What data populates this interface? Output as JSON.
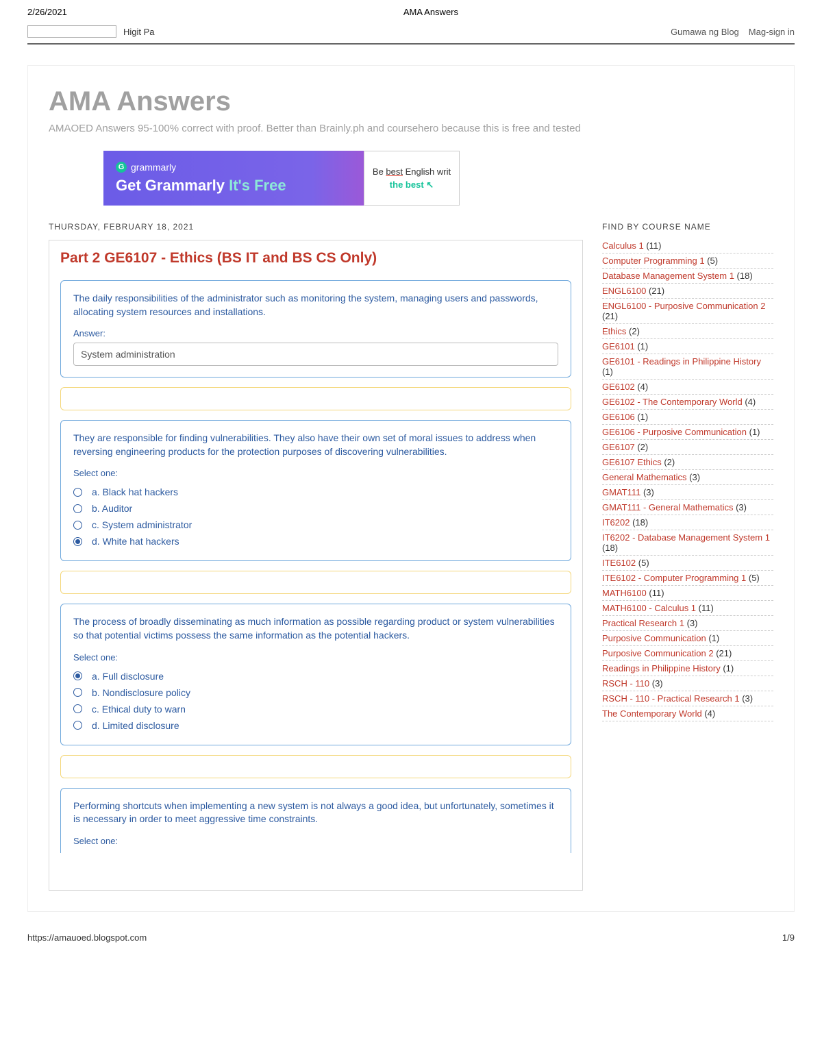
{
  "print": {
    "date": "2/26/2021",
    "title": "AMA Answers",
    "url": "https://amauoed.blogspot.com",
    "page": "1/9"
  },
  "topbar": {
    "hint": "Higit Pa",
    "link1": "Gumawa ng Blog",
    "link2": "Mag-sign in"
  },
  "site": {
    "title": "AMA Answers",
    "subtitle": "AMAOED Answers 95-100% correct with proof. Better than Brainly.ph and coursehero because this is free and tested"
  },
  "ad": {
    "brand": "grammarly",
    "headline_a": "Get Grammarly ",
    "headline_b": "It's Free",
    "right1a": "Be ",
    "right1b": "best",
    "right1c": " English writ",
    "right2a": "the ",
    "right2b": "best"
  },
  "post": {
    "date": "THURSDAY, FEBRUARY 18, 2021",
    "title": "Part 2 GE6107 - Ethics (BS IT and BS CS Only)",
    "q1": {
      "text": "The daily responsibilities of the administrator such as monitoring the system, managing users and passwords, allocating system resources and installations.",
      "answer_label": "Answer:",
      "answer_value": "System administration"
    },
    "q2": {
      "text": "They are responsible for finding vulnerabilities. They also have their own set of moral issues to address when reversing engineering products for the protection purposes of discovering vulnerabilities.",
      "select": "Select one:",
      "options": [
        {
          "label": "a. Black hat hackers",
          "selected": false
        },
        {
          "label": "b. Auditor",
          "selected": false
        },
        {
          "label": "c. System administrator",
          "selected": false
        },
        {
          "label": "d. White hat hackers",
          "selected": true
        }
      ]
    },
    "q3": {
      "text": "The process of broadly disseminating as much information as possible regarding product or system vulnerabilities so that potential victims possess the same information as the potential hackers.",
      "select": "Select one:",
      "options": [
        {
          "label": "a. Full disclosure",
          "selected": true
        },
        {
          "label": "b. Nondisclosure policy",
          "selected": false
        },
        {
          "label": "c. Ethical duty to warn",
          "selected": false
        },
        {
          "label": "d. Limited disclosure",
          "selected": false
        }
      ]
    },
    "q4": {
      "text": "Performing shortcuts when implementing a new system is not always a good idea, but unfortunately, sometimes it is necessary in order to meet aggressive time constraints.",
      "select": "Select one:"
    }
  },
  "sidebar": {
    "title": "FIND BY COURSE NAME",
    "items": [
      {
        "name": "Calculus 1",
        "count": "(11)"
      },
      {
        "name": "Computer Programming 1",
        "count": "(5)"
      },
      {
        "name": "Database Management System 1",
        "count": "(18)"
      },
      {
        "name": "ENGL6100",
        "count": "(21)"
      },
      {
        "name": "ENGL6100 - Purposive Communication 2",
        "count": "(21)"
      },
      {
        "name": "Ethics",
        "count": "(2)"
      },
      {
        "name": "GE6101",
        "count": "(1)"
      },
      {
        "name": "GE6101 - Readings in Philippine History",
        "count": "(1)"
      },
      {
        "name": "GE6102",
        "count": "(4)"
      },
      {
        "name": "GE6102 - The Contemporary World",
        "count": "(4)"
      },
      {
        "name": "GE6106",
        "count": "(1)"
      },
      {
        "name": "GE6106 - Purposive Communication",
        "count": "(1)"
      },
      {
        "name": "GE6107",
        "count": "(2)"
      },
      {
        "name": "GE6107 Ethics",
        "count": "(2)"
      },
      {
        "name": "General Mathematics",
        "count": "(3)"
      },
      {
        "name": "GMAT111",
        "count": "(3)"
      },
      {
        "name": "GMAT111 - General Mathematics",
        "count": "(3)"
      },
      {
        "name": "IT6202",
        "count": "(18)"
      },
      {
        "name": "IT6202 - Database Management System 1",
        "count": "(18)"
      },
      {
        "name": "ITE6102",
        "count": "(5)"
      },
      {
        "name": "ITE6102 - Computer Programming 1",
        "count": "(5)"
      },
      {
        "name": "MATH6100",
        "count": "(11)"
      },
      {
        "name": "MATH6100 - Calculus 1",
        "count": "(11)"
      },
      {
        "name": "Practical Research 1",
        "count": "(3)"
      },
      {
        "name": "Purposive Communication",
        "count": "(1)"
      },
      {
        "name": "Purposive Communication 2",
        "count": "(21)"
      },
      {
        "name": "Readings in Philippine History",
        "count": "(1)"
      },
      {
        "name": "RSCH - 110",
        "count": "(3)"
      },
      {
        "name": "RSCH - 110 - Practical Research 1",
        "count": "(3)"
      },
      {
        "name": "The Contemporary World",
        "count": "(4)"
      }
    ]
  }
}
